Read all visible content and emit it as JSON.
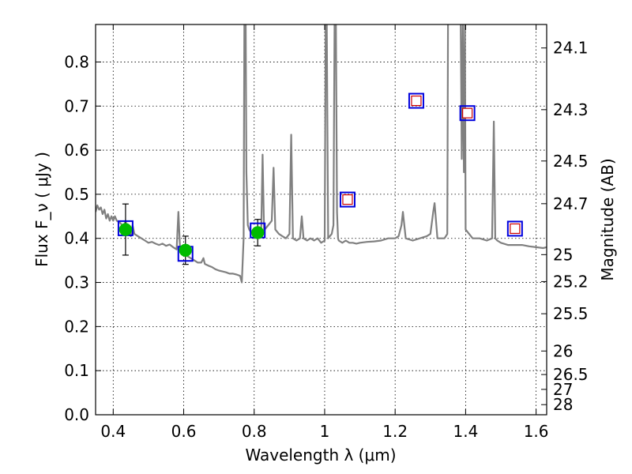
{
  "chart_data": {
    "type": "line",
    "xlabel": "Wavelength  λ (μm)",
    "ylabel": "Flux  F_ν  ( μJy )",
    "ylabel_right": "Magnitude (AB)",
    "xlim": [
      0.35,
      1.63
    ],
    "ylim": [
      0.0,
      0.885
    ],
    "grid": true,
    "x_ticks": [
      0.4,
      0.6,
      0.8,
      1.0,
      1.2,
      1.4,
      1.6
    ],
    "x_tick_labels": [
      "0.4",
      "0.6",
      "0.8",
      "1",
      "1.2",
      "1.4",
      "1.6"
    ],
    "y_ticks": [
      0.0,
      0.1,
      0.2,
      0.3,
      0.4,
      0.5,
      0.6,
      0.7,
      0.8
    ],
    "y_tick_labels": [
      "0.0",
      "0.1",
      "0.2",
      "0.3",
      "0.4",
      "0.5",
      "0.6",
      "0.7",
      "0.8"
    ],
    "mag_ticks": [
      24.1,
      24.3,
      24.5,
      24.7,
      25,
      25.2,
      25.5,
      26,
      26.5,
      27,
      28
    ],
    "mag_tick_labels": [
      "24.1",
      "24.3",
      "24.5",
      "24.7",
      "25",
      "25.2",
      "25.5",
      "26",
      "26.5",
      "27",
      "28"
    ],
    "series": [
      {
        "kind": "model_spectrum",
        "color": "#808080",
        "x": [
          0.35,
          0.355,
          0.36,
          0.365,
          0.37,
          0.375,
          0.38,
          0.385,
          0.39,
          0.395,
          0.4,
          0.405,
          0.41,
          0.42,
          0.43,
          0.435,
          0.44,
          0.45,
          0.455,
          0.46,
          0.47,
          0.48,
          0.49,
          0.5,
          0.51,
          0.52,
          0.53,
          0.54,
          0.55,
          0.56,
          0.57,
          0.58,
          0.585,
          0.59,
          0.6,
          0.61,
          0.62,
          0.63,
          0.64,
          0.65,
          0.656,
          0.66,
          0.67,
          0.68,
          0.69,
          0.7,
          0.71,
          0.72,
          0.73,
          0.74,
          0.75,
          0.76,
          0.765,
          0.77,
          0.772,
          0.776,
          0.778,
          0.782,
          0.786,
          0.79,
          0.8,
          0.81,
          0.82,
          0.824,
          0.828,
          0.83,
          0.84,
          0.85,
          0.855,
          0.86,
          0.87,
          0.88,
          0.89,
          0.9,
          0.905,
          0.91,
          0.92,
          0.93,
          0.935,
          0.94,
          0.95,
          0.96,
          0.97,
          0.98,
          0.99,
          1.0,
          1.003,
          1.006,
          1.01,
          1.02,
          1.025,
          1.028,
          1.032,
          1.035,
          1.038,
          1.04,
          1.05,
          1.06,
          1.07,
          1.08,
          1.09,
          1.1,
          1.12,
          1.14,
          1.16,
          1.18,
          1.2,
          1.21,
          1.218,
          1.222,
          1.226,
          1.23,
          1.25,
          1.27,
          1.29,
          1.3,
          1.308,
          1.312,
          1.316,
          1.32,
          1.34,
          1.348,
          1.35,
          1.36,
          1.37,
          1.38,
          1.383,
          1.386,
          1.389,
          1.392,
          1.395,
          1.398,
          1.4,
          1.42,
          1.44,
          1.46,
          1.475,
          1.48,
          1.484,
          1.49,
          1.5,
          1.52,
          1.54,
          1.56,
          1.58,
          1.6,
          1.62,
          1.63
        ],
        "y": [
          0.46,
          0.475,
          0.465,
          0.47,
          0.455,
          0.465,
          0.445,
          0.455,
          0.44,
          0.45,
          0.44,
          0.45,
          0.44,
          0.435,
          0.425,
          0.44,
          0.42,
          0.405,
          0.43,
          0.41,
          0.405,
          0.4,
          0.395,
          0.39,
          0.392,
          0.388,
          0.385,
          0.388,
          0.383,
          0.386,
          0.38,
          0.375,
          0.46,
          0.37,
          0.365,
          0.36,
          0.355,
          0.35,
          0.345,
          0.345,
          0.355,
          0.342,
          0.338,
          0.335,
          0.33,
          0.327,
          0.325,
          0.323,
          0.32,
          0.32,
          0.318,
          0.315,
          0.3,
          0.4,
          0.89,
          0.89,
          0.55,
          0.43,
          0.42,
          0.415,
          0.41,
          0.41,
          0.42,
          0.59,
          0.42,
          0.42,
          0.43,
          0.44,
          0.56,
          0.42,
          0.41,
          0.405,
          0.4,
          0.41,
          0.635,
          0.4,
          0.395,
          0.4,
          0.45,
          0.4,
          0.395,
          0.4,
          0.395,
          0.4,
          0.39,
          0.395,
          0.89,
          0.89,
          0.4,
          0.41,
          0.43,
          0.89,
          0.89,
          0.46,
          0.4,
          0.395,
          0.39,
          0.395,
          0.39,
          0.39,
          0.388,
          0.39,
          0.392,
          0.393,
          0.395,
          0.4,
          0.4,
          0.405,
          0.43,
          0.46,
          0.43,
          0.4,
          0.395,
          0.4,
          0.405,
          0.41,
          0.46,
          0.48,
          0.44,
          0.4,
          0.4,
          0.41,
          0.89,
          0.89,
          0.89,
          0.89,
          0.89,
          0.89,
          0.58,
          0.89,
          0.55,
          0.89,
          0.42,
          0.4,
          0.4,
          0.395,
          0.4,
          0.665,
          0.4,
          0.395,
          0.39,
          0.385,
          0.385,
          0.385,
          0.382,
          0.38,
          0.378,
          0.38
        ]
      },
      {
        "kind": "observed",
        "marker": "circle",
        "color": "#00bb00",
        "x": [
          0.435,
          0.605,
          0.81
        ],
        "y": [
          0.42,
          0.373,
          0.413
        ],
        "yerr": [
          0.058,
          0.032,
          0.03
        ]
      },
      {
        "kind": "model_photometry",
        "marker": "open-square",
        "color": "#0000dd",
        "x": [
          0.435,
          0.605,
          0.81,
          1.065,
          1.26,
          1.405,
          1.54
        ],
        "y": [
          0.423,
          0.365,
          0.418,
          0.488,
          0.712,
          0.684,
          0.422
        ]
      },
      {
        "kind": "upper_photometry",
        "marker": "small-open-square",
        "color": "#cc0000",
        "x": [
          1.065,
          1.26,
          1.405,
          1.54
        ],
        "y": [
          0.488,
          0.712,
          0.684,
          0.422
        ]
      }
    ]
  }
}
